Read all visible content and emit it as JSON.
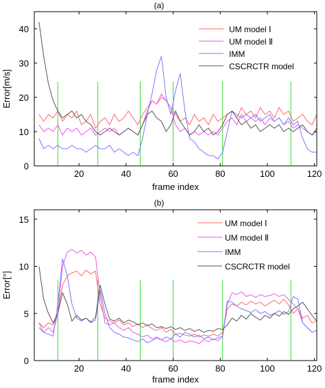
{
  "chart_data": [
    {
      "type": "line",
      "panel_label": "(a)",
      "xlabel": "frame index",
      "ylabel": "Error[m/s]",
      "xlim": [
        1,
        121
      ],
      "ylim": [
        0,
        45
      ],
      "xticks": [
        20,
        40,
        60,
        80,
        100,
        120
      ],
      "yticks": [
        0,
        10,
        20,
        30,
        40
      ],
      "grid": false,
      "legend_position": "top-right",
      "vlines": {
        "color": "#33dd33",
        "x": [
          11,
          28,
          46,
          60,
          81,
          110
        ]
      },
      "series": [
        {
          "name": "UM model  Ⅰ",
          "color": "#ff6666",
          "x": [
            3,
            5,
            7,
            9,
            11,
            13,
            15,
            17,
            19,
            21,
            23,
            25,
            27,
            29,
            31,
            33,
            35,
            37,
            39,
            41,
            43,
            45,
            47,
            49,
            51,
            53,
            55,
            57,
            59,
            61,
            63,
            65,
            67,
            69,
            71,
            73,
            75,
            77,
            79,
            81,
            83,
            85,
            87,
            89,
            91,
            93,
            95,
            97,
            99,
            101,
            103,
            105,
            107,
            109,
            111,
            113,
            115,
            117,
            119,
            121
          ],
          "values": [
            15,
            13,
            15,
            14,
            16,
            13,
            15,
            14,
            16,
            12,
            13,
            15,
            11,
            13,
            14,
            12,
            15,
            13,
            14,
            16,
            14,
            12,
            15,
            17,
            19,
            18,
            20,
            19,
            17,
            15,
            13,
            14,
            12,
            15,
            13,
            14,
            12,
            15,
            13,
            14,
            15,
            16,
            14,
            17,
            15,
            16,
            14,
            17,
            15,
            16,
            14,
            17,
            15,
            16,
            13,
            14,
            15,
            13,
            12,
            15
          ]
        },
        {
          "name": "UM model  Ⅱ",
          "color": "#ee55ee",
          "x": [
            3,
            5,
            7,
            9,
            11,
            13,
            15,
            17,
            19,
            21,
            23,
            25,
            27,
            29,
            31,
            33,
            35,
            37,
            39,
            41,
            43,
            45,
            47,
            49,
            51,
            53,
            55,
            57,
            59,
            61,
            63,
            65,
            67,
            69,
            71,
            73,
            75,
            77,
            79,
            81,
            83,
            85,
            87,
            89,
            91,
            93,
            95,
            97,
            99,
            101,
            103,
            105,
            107,
            109,
            111,
            113,
            115,
            117,
            119,
            121
          ],
          "values": [
            12,
            10,
            11,
            10,
            12,
            9,
            11,
            10,
            11,
            9,
            10,
            11,
            9,
            10,
            11,
            10,
            11,
            9,
            10,
            11,
            10,
            9,
            12,
            16,
            19,
            18,
            21,
            19,
            17,
            12,
            10,
            11,
            9,
            10,
            9,
            10,
            9,
            10,
            9,
            11,
            13,
            14,
            12,
            15,
            13,
            14,
            13,
            14,
            12,
            14,
            13,
            14,
            12,
            13,
            11,
            12,
            11,
            10,
            9,
            10
          ]
        },
        {
          "name": "IMM",
          "color": "#7777ff",
          "x": [
            3,
            5,
            7,
            9,
            11,
            13,
            15,
            17,
            19,
            21,
            23,
            25,
            27,
            29,
            31,
            33,
            35,
            37,
            39,
            41,
            43,
            45,
            47,
            49,
            51,
            53,
            55,
            57,
            59,
            61,
            63,
            65,
            67,
            69,
            71,
            73,
            75,
            77,
            79,
            81,
            83,
            85,
            87,
            89,
            91,
            93,
            95,
            97,
            99,
            101,
            103,
            105,
            107,
            109,
            111,
            113,
            115,
            117,
            119,
            121
          ],
          "values": [
            8,
            5,
            6,
            5,
            6,
            5,
            5,
            6,
            5,
            5,
            4,
            5,
            6,
            5,
            5,
            6,
            4,
            5,
            4,
            3,
            4,
            3,
            8,
            15,
            21,
            28,
            32,
            20,
            15,
            22,
            27,
            16,
            8,
            7,
            5,
            4,
            3,
            3,
            2,
            4,
            10,
            16,
            15,
            14,
            15,
            14,
            15,
            13,
            14,
            15,
            13,
            14,
            12,
            14,
            12,
            13,
            8,
            5,
            4,
            4
          ]
        },
        {
          "name": "CSCRCTR model",
          "color": "#555555",
          "x": [
            3,
            5,
            7,
            9,
            11,
            13,
            15,
            17,
            19,
            21,
            23,
            25,
            27,
            29,
            31,
            33,
            35,
            37,
            39,
            41,
            43,
            45,
            47,
            49,
            51,
            53,
            55,
            57,
            59,
            61,
            63,
            65,
            67,
            69,
            71,
            73,
            75,
            77,
            79,
            81,
            83,
            85,
            87,
            89,
            91,
            93,
            95,
            97,
            99,
            101,
            103,
            105,
            107,
            109,
            111,
            113,
            115,
            117,
            119,
            121
          ],
          "values": [
            42,
            32,
            24,
            19,
            16,
            14,
            15,
            16,
            14,
            15,
            13,
            12,
            10,
            9,
            10,
            11,
            10,
            9,
            10,
            11,
            10,
            9,
            12,
            15,
            16,
            14,
            13,
            10,
            12,
            16,
            13,
            11,
            9,
            10,
            12,
            10,
            11,
            9,
            10,
            12,
            15,
            16,
            14,
            12,
            13,
            11,
            12,
            10,
            11,
            12,
            11,
            12,
            10,
            11,
            10,
            11,
            12,
            10,
            9,
            11
          ]
        }
      ]
    },
    {
      "type": "line",
      "panel_label": "(b)",
      "xlabel": "frame index",
      "ylabel": "Error[°]",
      "xlim": [
        1,
        121
      ],
      "ylim": [
        0,
        16
      ],
      "xticks": [
        20,
        40,
        60,
        80,
        100,
        120
      ],
      "yticks": [
        0,
        5,
        10,
        15
      ],
      "grid": false,
      "legend_position": "top-right",
      "vlines": {
        "color": "#33dd33",
        "x": [
          11,
          28,
          46,
          60,
          81,
          110
        ]
      },
      "series": [
        {
          "name": "UM model  Ⅰ",
          "color": "#ff6666",
          "x": [
            3,
            5,
            7,
            9,
            11,
            13,
            15,
            17,
            19,
            21,
            23,
            25,
            27,
            29,
            31,
            33,
            35,
            37,
            39,
            41,
            43,
            45,
            47,
            49,
            51,
            53,
            55,
            57,
            59,
            61,
            63,
            65,
            67,
            69,
            71,
            73,
            75,
            77,
            79,
            81,
            83,
            85,
            87,
            89,
            91,
            93,
            95,
            97,
            99,
            101,
            103,
            105,
            107,
            109,
            111,
            113,
            115,
            117,
            119,
            121
          ],
          "values": [
            4,
            3.5,
            4,
            3.8,
            5,
            8,
            9,
            9.3,
            9.5,
            9,
            9.6,
            9.2,
            9.5,
            6,
            4.5,
            4.2,
            4,
            4.3,
            3.8,
            4,
            3.6,
            3.9,
            3.5,
            3.8,
            3.4,
            3.2,
            3.5,
            3,
            3.3,
            2.8,
            2.9,
            2.7,
            2.6,
            2.8,
            2.5,
            2.7,
            2.6,
            2.8,
            2.6,
            3,
            5.5,
            6,
            5.8,
            6.2,
            5.9,
            6.3,
            6,
            6.2,
            5.8,
            6.1,
            6.4,
            6,
            6.5,
            5.9,
            5,
            5.5,
            4.5,
            4.8,
            4,
            4.2
          ]
        },
        {
          "name": "UM model  Ⅱ",
          "color": "#ee55ee",
          "x": [
            3,
            5,
            7,
            9,
            11,
            13,
            15,
            17,
            19,
            21,
            23,
            25,
            27,
            29,
            31,
            33,
            35,
            37,
            39,
            41,
            43,
            45,
            47,
            49,
            51,
            53,
            55,
            57,
            59,
            61,
            63,
            65,
            67,
            69,
            71,
            73,
            75,
            77,
            79,
            81,
            83,
            85,
            87,
            89,
            91,
            93,
            95,
            97,
            99,
            101,
            103,
            105,
            107,
            109,
            111,
            113,
            115,
            117,
            119,
            121
          ],
          "values": [
            4,
            3,
            3.5,
            3,
            5,
            10,
            11.5,
            11.8,
            11.4,
            11.7,
            11.2,
            11.5,
            11,
            7,
            4,
            3.8,
            4,
            3.5,
            3.2,
            3.5,
            3,
            2.8,
            2.5,
            2.7,
            2.3,
            2.5,
            2.2,
            2,
            2.3,
            2,
            2.2,
            1.9,
            2.1,
            2,
            1.8,
            2.2,
            2,
            2.3,
            2.1,
            2.5,
            6,
            7.2,
            7,
            7.3,
            6.8,
            7,
            6.7,
            7,
            6.8,
            6.9,
            7.1,
            6.8,
            7,
            6.5,
            6,
            5.5,
            4,
            3.5,
            3,
            3.2
          ]
        },
        {
          "name": "IMM",
          "color": "#7777ff",
          "x": [
            3,
            5,
            7,
            9,
            11,
            13,
            15,
            17,
            19,
            21,
            23,
            25,
            27,
            29,
            31,
            33,
            35,
            37,
            39,
            41,
            43,
            45,
            47,
            49,
            51,
            53,
            55,
            57,
            59,
            61,
            63,
            65,
            67,
            69,
            71,
            73,
            75,
            77,
            79,
            81,
            83,
            85,
            87,
            89,
            91,
            93,
            95,
            97,
            99,
            101,
            103,
            105,
            107,
            109,
            111,
            113,
            115,
            117,
            119,
            121
          ],
          "values": [
            3.5,
            3,
            2.8,
            2.6,
            6,
            10.8,
            9,
            6,
            4.5,
            4.2,
            4.5,
            4,
            4.3,
            7.5,
            5,
            3.5,
            3,
            2.8,
            2.5,
            2.4,
            2.2,
            2,
            2.3,
            1.9,
            2.1,
            2.4,
            2.2,
            2.5,
            2.3,
            2.8,
            2.5,
            3,
            2.8,
            2.5,
            2.7,
            2.3,
            2.5,
            2.2,
            2.4,
            2.6,
            6.3,
            6.2,
            5.8,
            5.5,
            5.3,
            5.1,
            5.4,
            5,
            5.2,
            4.8,
            5,
            5.3,
            4.9,
            5.2,
            6.8,
            6.5,
            4,
            3.5,
            3,
            3.2
          ]
        },
        {
          "name": "CSCRCTR model",
          "color": "#555555",
          "x": [
            3,
            5,
            7,
            9,
            11,
            13,
            15,
            17,
            19,
            21,
            23,
            25,
            27,
            29,
            31,
            33,
            35,
            37,
            39,
            41,
            43,
            45,
            47,
            49,
            51,
            53,
            55,
            57,
            59,
            61,
            63,
            65,
            67,
            69,
            71,
            73,
            75,
            77,
            79,
            81,
            83,
            85,
            87,
            89,
            91,
            93,
            95,
            97,
            99,
            101,
            103,
            105,
            107,
            109,
            111,
            113,
            115,
            117,
            119,
            121
          ],
          "values": [
            10,
            6.5,
            5,
            4,
            5,
            7.2,
            6,
            4.2,
            4.8,
            4.3,
            4.5,
            4.1,
            4.6,
            8,
            6,
            4.4,
            4.2,
            4.5,
            4,
            4.3,
            4.1,
            3.8,
            4,
            3.7,
            3.9,
            3.5,
            3.6,
            3.4,
            3.6,
            3.3,
            3.5,
            3.2,
            3.4,
            3.1,
            3.3,
            3,
            3.2,
            3.1,
            3.4,
            3.3,
            3.8,
            4.5,
            4.2,
            4.8,
            4.4,
            5,
            4.6,
            4.3,
            4.8,
            4.5,
            5,
            4.7,
            5.2,
            4.9,
            5.5,
            5.8,
            6.2,
            5.5,
            4.8,
            4.2
          ]
        }
      ]
    }
  ]
}
